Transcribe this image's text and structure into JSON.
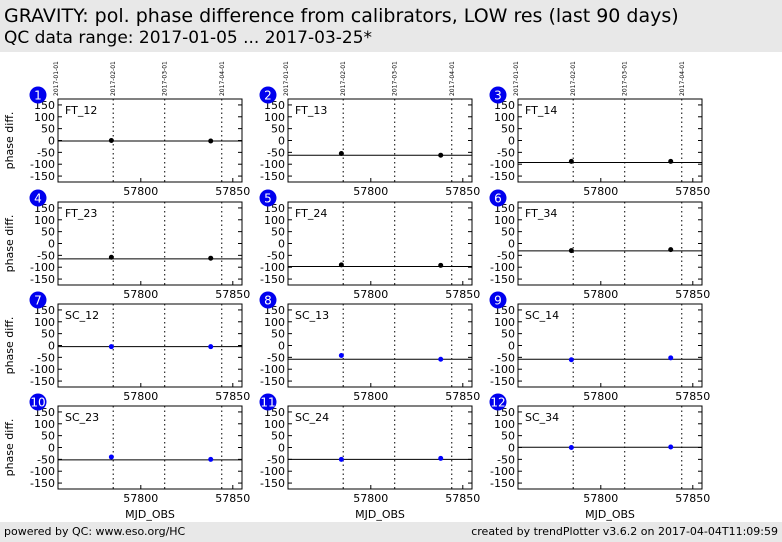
{
  "header": {
    "title": "GRAVITY: pol. phase difference from calibrators, LOW res (last 90 days)",
    "subtitle": "QC data range: 2017-01-05 ... 2017-03-25*"
  },
  "footer": {
    "left": "powered by QC: www.eso.org/HC",
    "right": "created by trendPlotter v3.6.2 on 2017-04-04T11:09:59"
  },
  "colors": {
    "ft_points": "#000000",
    "sc_points": "#0000ff",
    "badge": "#0000ee",
    "header_bg": "#e8e8e8"
  },
  "chart_data": [
    {
      "type": "scatter",
      "number": "1",
      "label": "FT_12",
      "ylabel": "phase diff.",
      "xlabel": "",
      "x": [
        57784,
        57838
      ],
      "y": [
        0,
        -2
      ],
      "reference_line": -2,
      "xticks": [
        "57800",
        "57850"
      ],
      "yticks": [
        "150",
        "100",
        "50",
        "0",
        "-50",
        "-100",
        "-150"
      ],
      "ylim": [
        -175,
        175
      ],
      "date_ticks": [
        "2017-01-01",
        "2017-02-01",
        "2017-03-01",
        "2017-04-01"
      ],
      "color": "#000000"
    },
    {
      "type": "scatter",
      "number": "2",
      "label": "FT_13",
      "ylabel": "",
      "xlabel": "",
      "x": [
        57784,
        57838
      ],
      "y": [
        -55,
        -62
      ],
      "reference_line": -62,
      "xticks": [
        "57800",
        "57850"
      ],
      "yticks": [
        "150",
        "100",
        "50",
        "0",
        "-50",
        "-100",
        "-150"
      ],
      "ylim": [
        -175,
        175
      ],
      "date_ticks": [
        "2017-01-01",
        "2017-02-01",
        "2017-03-01",
        "2017-04-01"
      ],
      "color": "#000000"
    },
    {
      "type": "scatter",
      "number": "3",
      "label": "FT_14",
      "ylabel": "",
      "xlabel": "",
      "x": [
        57784,
        57838
      ],
      "y": [
        -88,
        -88
      ],
      "reference_line": -93,
      "xticks": [
        "57800",
        "57850"
      ],
      "yticks": [
        "150",
        "100",
        "50",
        "0",
        "-50",
        "-100",
        "-150"
      ],
      "ylim": [
        -175,
        175
      ],
      "date_ticks": [
        "2017-01-01",
        "2017-02-01",
        "2017-03-01",
        "2017-04-01"
      ],
      "color": "#000000"
    },
    {
      "type": "scatter",
      "number": "4",
      "label": "FT_23",
      "ylabel": "phase diff.",
      "xlabel": "",
      "x": [
        57784,
        57838
      ],
      "y": [
        -58,
        -62
      ],
      "reference_line": -65,
      "xticks": [
        "57800",
        "57850"
      ],
      "yticks": [
        "150",
        "100",
        "50",
        "0",
        "-50",
        "-100",
        "-150"
      ],
      "ylim": [
        -175,
        175
      ],
      "date_ticks": [
        "2017-01-01",
        "2017-02-01",
        "2017-03-01",
        "2017-04-01"
      ],
      "color": "#000000"
    },
    {
      "type": "scatter",
      "number": "5",
      "label": "FT_24",
      "ylabel": "",
      "xlabel": "",
      "x": [
        57784,
        57838
      ],
      "y": [
        -90,
        -92
      ],
      "reference_line": -97,
      "xticks": [
        "57800",
        "57850"
      ],
      "yticks": [
        "150",
        "100",
        "50",
        "0",
        "-50",
        "-100",
        "-150"
      ],
      "ylim": [
        -175,
        175
      ],
      "date_ticks": [
        "2017-01-01",
        "2017-02-01",
        "2017-03-01",
        "2017-04-01"
      ],
      "color": "#000000"
    },
    {
      "type": "scatter",
      "number": "6",
      "label": "FT_34",
      "ylabel": "",
      "xlabel": "",
      "x": [
        57784,
        57838
      ],
      "y": [
        -30,
        -26
      ],
      "reference_line": -31,
      "xticks": [
        "57800",
        "57850"
      ],
      "yticks": [
        "150",
        "100",
        "50",
        "0",
        "-50",
        "-100",
        "-150"
      ],
      "ylim": [
        -175,
        175
      ],
      "date_ticks": [
        "2017-01-01",
        "2017-02-01",
        "2017-03-01",
        "2017-04-01"
      ],
      "color": "#000000"
    },
    {
      "type": "scatter",
      "number": "7",
      "label": "SC_12",
      "ylabel": "phase diff.",
      "xlabel": "",
      "x": [
        57784,
        57838
      ],
      "y": [
        -5,
        -5
      ],
      "reference_line": -5,
      "xticks": [
        "57800",
        "57850"
      ],
      "yticks": [
        "150",
        "100",
        "50",
        "0",
        "-50",
        "-100",
        "-150"
      ],
      "ylim": [
        -175,
        175
      ],
      "date_ticks": [
        "2017-01-01",
        "2017-02-01",
        "2017-03-01",
        "2017-04-01"
      ],
      "color": "#0000ff"
    },
    {
      "type": "scatter",
      "number": "8",
      "label": "SC_13",
      "ylabel": "",
      "xlabel": "",
      "x": [
        57784,
        57838
      ],
      "y": [
        -42,
        -58
      ],
      "reference_line": -58,
      "xticks": [
        "57800",
        "57850"
      ],
      "yticks": [
        "150",
        "100",
        "50",
        "0",
        "-50",
        "-100",
        "-150"
      ],
      "ylim": [
        -175,
        175
      ],
      "date_ticks": [
        "2017-01-01",
        "2017-02-01",
        "2017-03-01",
        "2017-04-01"
      ],
      "color": "#0000ff"
    },
    {
      "type": "scatter",
      "number": "9",
      "label": "SC_14",
      "ylabel": "",
      "xlabel": "",
      "x": [
        57784,
        57838
      ],
      "y": [
        -60,
        -52
      ],
      "reference_line": -58,
      "xticks": [
        "57800",
        "57850"
      ],
      "yticks": [
        "150",
        "100",
        "50",
        "0",
        "-50",
        "-100",
        "-150"
      ],
      "ylim": [
        -175,
        175
      ],
      "date_ticks": [
        "2017-01-01",
        "2017-02-01",
        "2017-03-01",
        "2017-04-01"
      ],
      "color": "#0000ff"
    },
    {
      "type": "scatter",
      "number": "10",
      "label": "SC_23",
      "ylabel": "phase diff.",
      "xlabel": "MJD_OBS",
      "x": [
        57784,
        57838
      ],
      "y": [
        -40,
        -50
      ],
      "reference_line": -52,
      "xticks": [
        "57800",
        "57850"
      ],
      "yticks": [
        "150",
        "100",
        "50",
        "0",
        "-50",
        "-100",
        "-150"
      ],
      "ylim": [
        -175,
        175
      ],
      "date_ticks": [
        "2017-01-01",
        "2017-02-01",
        "2017-03-01",
        "2017-04-01"
      ],
      "color": "#0000ff"
    },
    {
      "type": "scatter",
      "number": "11",
      "label": "SC_24",
      "ylabel": "",
      "xlabel": "MJD_OBS",
      "x": [
        57784,
        57838
      ],
      "y": [
        -50,
        -46
      ],
      "reference_line": -50,
      "xticks": [
        "57800",
        "57850"
      ],
      "yticks": [
        "150",
        "100",
        "50",
        "0",
        "-50",
        "-100",
        "-150"
      ],
      "ylim": [
        -175,
        175
      ],
      "date_ticks": [
        "2017-01-01",
        "2017-02-01",
        "2017-03-01",
        "2017-04-01"
      ],
      "color": "#0000ff"
    },
    {
      "type": "scatter",
      "number": "12",
      "label": "SC_34",
      "ylabel": "",
      "xlabel": "MJD_OBS",
      "x": [
        57784,
        57838
      ],
      "y": [
        0,
        2
      ],
      "reference_line": 1,
      "xticks": [
        "57800",
        "57850"
      ],
      "yticks": [
        "150",
        "100",
        "50",
        "0",
        "-50",
        "-100",
        "-150"
      ],
      "ylim": [
        -175,
        175
      ],
      "date_ticks": [
        "2017-01-01",
        "2017-02-01",
        "2017-03-01",
        "2017-04-01"
      ],
      "color": "#0000ff"
    }
  ]
}
